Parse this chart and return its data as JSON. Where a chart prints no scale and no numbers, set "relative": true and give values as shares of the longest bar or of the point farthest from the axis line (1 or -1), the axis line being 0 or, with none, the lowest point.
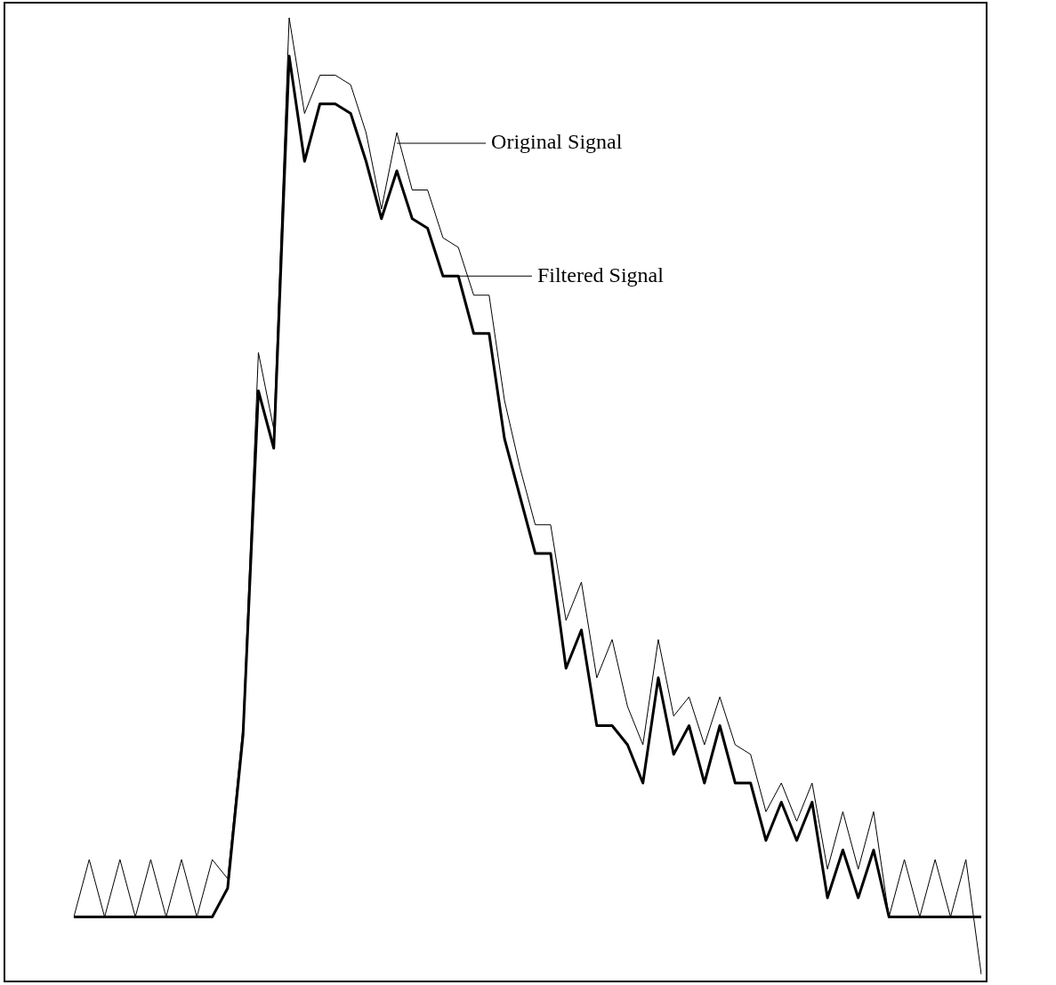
{
  "chart_data": {
    "type": "line",
    "relative": true,
    "legend": "top",
    "categories": [
      null,
      null,
      null,
      null,
      null,
      null,
      null,
      null,
      null,
      null,
      null,
      null,
      null,
      null,
      null,
      null,
      null,
      null,
      null,
      null,
      null,
      null,
      null,
      null,
      null,
      null,
      null,
      null,
      null,
      null,
      null,
      null,
      null,
      null,
      null,
      null,
      null,
      null,
      null,
      null,
      null,
      null,
      null,
      null,
      null,
      null,
      null,
      null,
      null,
      null,
      null,
      null,
      null,
      null,
      null,
      null,
      null,
      null,
      null,
      null
    ],
    "series": [
      {
        "name": "Original Signal",
        "color": "#000000",
        "values": [
          0.06,
          0.12,
          0.06,
          0.12,
          0.06,
          0.12,
          0.06,
          0.12,
          0.06,
          0.12,
          0.1,
          0.26,
          0.65,
          0.57,
          1.0,
          0.9,
          0.94,
          0.94,
          0.93,
          0.88,
          0.8,
          0.88,
          0.82,
          0.82,
          0.77,
          0.76,
          0.71,
          0.71,
          0.6,
          0.53,
          0.47,
          0.47,
          0.37,
          0.41,
          0.31,
          0.35,
          0.28,
          0.24,
          0.35,
          0.27,
          0.29,
          0.24,
          0.29,
          0.24,
          0.23,
          0.17,
          0.2,
          0.16,
          0.2,
          0.11,
          0.17,
          0.11,
          0.17,
          0.06,
          0.12,
          0.06,
          0.12,
          0.06,
          0.12,
          0
        ]
      },
      {
        "name": "Filtered Signal",
        "color": "#000000",
        "values": [
          0.06,
          0.06,
          0.06,
          0.06,
          0.06,
          0.06,
          0.06,
          0.06,
          0.06,
          0.06,
          0.09,
          0.25,
          0.61,
          0.55,
          0.96,
          0.85,
          0.91,
          0.91,
          0.9,
          0.85,
          0.79,
          0.84,
          0.79,
          0.78,
          0.73,
          0.73,
          0.67,
          0.67,
          0.56,
          0.5,
          0.44,
          0.44,
          0.32,
          0.36,
          0.26,
          0.26,
          0.24,
          0.2,
          0.31,
          0.23,
          0.26,
          0.2,
          0.26,
          0.2,
          0.2,
          0.14,
          0.18,
          0.14,
          0.18,
          0.08,
          0.13,
          0.08,
          0.13,
          0.06,
          0.06,
          0.06,
          0.06,
          0.06,
          0.06,
          0.06
        ]
      }
    ]
  }
}
